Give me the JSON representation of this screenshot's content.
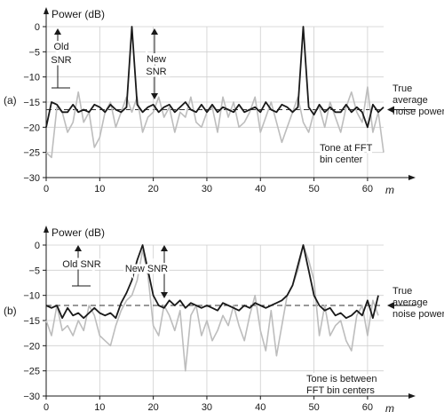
{
  "chart_data": [
    {
      "panel_label": "(a)",
      "type": "line",
      "ylabel": "Power (dB)",
      "xlabel": "m",
      "xlim": [
        0,
        63
      ],
      "ylim": [
        -30,
        0
      ],
      "xticks": [
        0,
        10,
        20,
        30,
        40,
        50,
        60
      ],
      "yticks": [
        0,
        -5,
        -10,
        -15,
        -20,
        -25,
        -30
      ],
      "grid": true,
      "reference_level": -16.5,
      "x": [
        0,
        1,
        2,
        3,
        4,
        5,
        6,
        7,
        8,
        9,
        10,
        11,
        12,
        13,
        14,
        15,
        16,
        17,
        18,
        19,
        20,
        21,
        22,
        23,
        24,
        25,
        26,
        27,
        28,
        29,
        30,
        31,
        32,
        33,
        34,
        35,
        36,
        37,
        38,
        39,
        40,
        41,
        42,
        43,
        44,
        45,
        46,
        47,
        48,
        49,
        50,
        51,
        52,
        53,
        54,
        55,
        55,
        56,
        57,
        58,
        59,
        60,
        61,
        62,
        63
      ],
      "series": [
        {
          "color": "#bdbdbd",
          "values": [
            -25,
            -26,
            -16,
            -17,
            -21,
            -19,
            -13,
            -19,
            -17,
            -24,
            -22,
            -17,
            -15,
            -20,
            -17,
            -14,
            -17,
            -14,
            -21,
            -18,
            -17,
            -14,
            -18,
            -16,
            -21,
            -17,
            -18,
            -14,
            -19,
            -20,
            -17,
            -16,
            -21,
            -14,
            -18,
            -15,
            -20,
            -19,
            -17,
            -14,
            -21,
            -18,
            -15,
            -19,
            -23,
            -20,
            -17,
            -14,
            -19,
            -21,
            -17,
            -16,
            -20,
            -15,
            -18,
            -21,
            -21,
            -16,
            -13,
            -17,
            -19,
            -12,
            -21,
            -17,
            -25
          ]
        },
        {
          "color": "#1a1a1a",
          "values": [
            -20,
            -15,
            -15.5,
            -17,
            -17,
            -15.5,
            -17,
            -16.5,
            -17,
            -15.5,
            -16,
            -17,
            -15.5,
            -16.5,
            -17,
            -16,
            0,
            -15.5,
            -17,
            -16,
            -15.5,
            -17,
            -16,
            -15.5,
            -17,
            -16,
            -15,
            -16.5,
            -17,
            -15.5,
            -17,
            -15.5,
            -17,
            -16,
            -16.5,
            -17,
            -15.5,
            -17,
            -16.5,
            -16,
            -17,
            -15,
            -16.5,
            -17,
            -15.5,
            -16,
            -17,
            -16,
            0,
            -16,
            -17.5,
            -15.5,
            -17,
            -16,
            -17,
            -17,
            -17,
            -15.5,
            -17,
            -16,
            -17,
            -20,
            -15.5,
            -17,
            -16
          ]
        }
      ]
    },
    {
      "panel_label": "(b)",
      "type": "line",
      "ylabel": "Power (dB)",
      "xlabel": "m",
      "xlim": [
        0,
        63
      ],
      "ylim": [
        -30,
        0
      ],
      "xticks": [
        0,
        10,
        20,
        30,
        40,
        50,
        60
      ],
      "yticks": [
        0,
        -5,
        -10,
        -15,
        -20,
        -25,
        -30
      ],
      "grid": true,
      "reference_level": -12,
      "x": [
        0,
        1,
        2,
        3,
        4,
        5,
        6,
        7,
        8,
        9,
        10,
        11,
        12,
        13,
        14,
        15,
        16,
        17,
        18,
        19,
        20,
        21,
        22,
        23,
        24,
        25,
        26,
        27,
        28,
        29,
        30,
        31,
        32,
        33,
        34,
        35,
        36,
        37,
        38,
        39,
        40,
        41,
        42,
        43,
        44,
        45,
        46,
        47,
        48,
        49,
        50,
        51,
        52,
        53,
        54,
        55,
        56,
        57,
        58,
        59,
        60,
        61,
        62
      ],
      "series": [
        {
          "color": "#bdbdbd",
          "values": [
            -15,
            -18,
            -12,
            -17,
            -16,
            -18,
            -15,
            -17,
            -12,
            -14,
            -18,
            -19,
            -20,
            -16,
            -13,
            -11,
            -10,
            -7,
            -1,
            -6,
            -16,
            -18,
            -12,
            -14,
            -17,
            -13,
            -25,
            -14,
            -12,
            -18,
            -15,
            -19,
            -17,
            -14,
            -16,
            -12,
            -16,
            -19,
            -14,
            -10,
            -17,
            -21,
            -13,
            -22,
            -16,
            -10,
            -8,
            -5,
            0,
            -3,
            -7,
            -18,
            -12,
            -18,
            -16,
            -15,
            -19,
            -21,
            -14,
            -12,
            -18,
            -11,
            -14
          ]
        },
        {
          "color": "#1a1a1a",
          "values": [
            -12,
            -12.5,
            -12,
            -14.5,
            -12.5,
            -14,
            -13.5,
            -14.5,
            -13.5,
            -12.5,
            -13.5,
            -14,
            -13.5,
            -14.5,
            -11.5,
            -9.5,
            -7,
            -3,
            0,
            -5,
            -10,
            -12,
            -12.5,
            -11,
            -12,
            -11,
            -12.5,
            -11.5,
            -12,
            -12.5,
            -12,
            -12.5,
            -13,
            -11.5,
            -12,
            -12.5,
            -13,
            -12,
            -12.5,
            -11.5,
            -12,
            -12.5,
            -12,
            -11.5,
            -11,
            -10,
            -8,
            -4,
            0,
            -5,
            -10,
            -12,
            -13,
            -12.5,
            -14,
            -13.5,
            -14.5,
            -14,
            -13,
            -14,
            -11,
            -14.5,
            -10
          ]
        }
      ]
    }
  ],
  "panels": [
    {
      "label": "(a)",
      "ylabel": "Power (dB)",
      "xlabel": "m",
      "ytick_labels": [
        "0",
        "−5",
        "−10",
        "−15",
        "−20",
        "−25",
        "−30"
      ],
      "xtick_labels": [
        "0",
        "10",
        "20",
        "30",
        "40",
        "50",
        "60"
      ],
      "annot_old": [
        "Old",
        "SNR"
      ],
      "annot_new": [
        "New",
        "SNR"
      ],
      "reference_label": [
        "True",
        "average",
        "noise power"
      ],
      "tone_note": [
        "Tone at FFT",
        "bin center"
      ]
    },
    {
      "label": "(b)",
      "ylabel": "Power (dB)",
      "xlabel": "m",
      "ytick_labels": [
        "0",
        "−5",
        "−10",
        "−15",
        "−20",
        "−25",
        "−30"
      ],
      "xtick_labels": [
        "0",
        "10",
        "20",
        "30",
        "40",
        "50",
        "60"
      ],
      "annot_old": [
        "Old SNR"
      ],
      "annot_new": [
        "New SNR"
      ],
      "reference_label": [
        "True",
        "average",
        "noise power"
      ],
      "tone_note": [
        "Tone is between",
        "FFT bin centers"
      ]
    }
  ]
}
